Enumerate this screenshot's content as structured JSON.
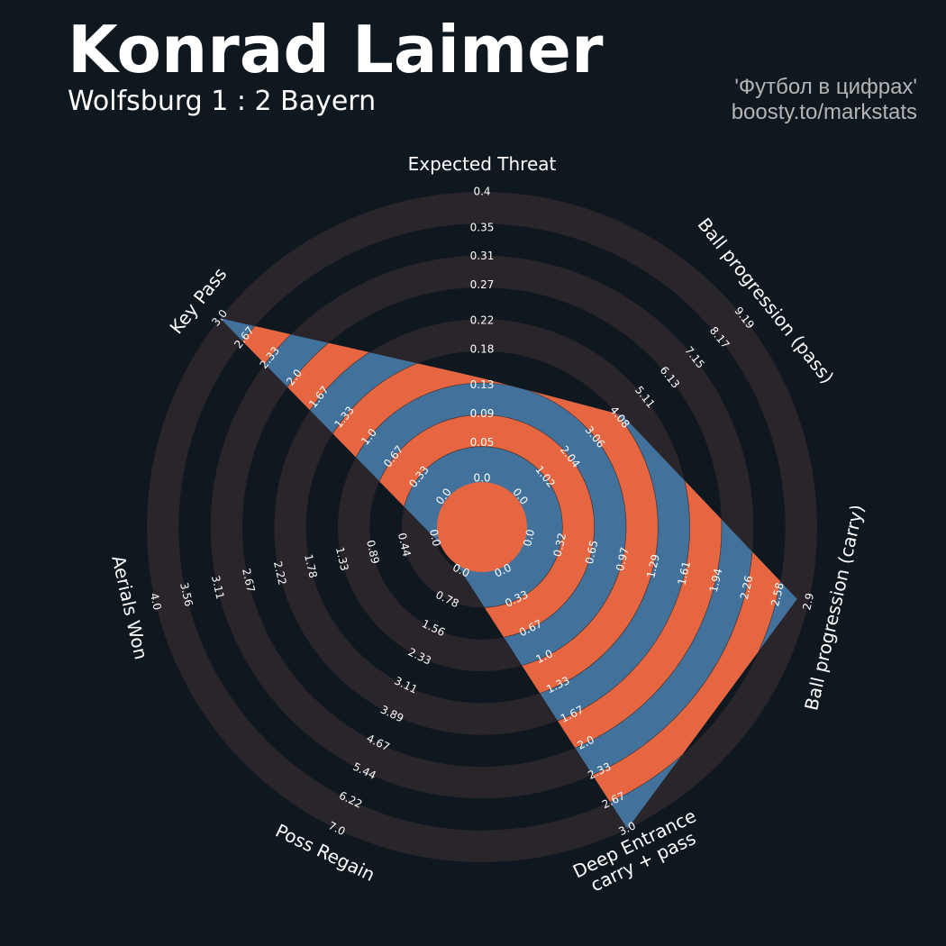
{
  "chart_data": {
    "type": "radar",
    "title": "Konrad Laimer",
    "subtitle": "Wolfsburg 1 : 2 Bayern",
    "credits": [
      "'Футбол в цифрах'",
      "boosty.to/markstats"
    ],
    "params": [
      "Expected Threat",
      "Ball progression (pass)",
      "Ball progression (carry)",
      "Deep Entrance\ncarry + pass",
      "Poss Regain",
      "Aerials Won",
      "Key Pass"
    ],
    "values": [
      0.14,
      4.2,
      2.78,
      3.0,
      0,
      0,
      3.0
    ],
    "ranges": [
      [
        0,
        0.4
      ],
      [
        0,
        9.19
      ],
      [
        0,
        2.9
      ],
      [
        0,
        3.0
      ],
      [
        0,
        7.0
      ],
      [
        0,
        4.0
      ],
      [
        0,
        3.0
      ]
    ],
    "ticks": [
      [
        {
          "value": 0,
          "label": "0.0"
        },
        0.05,
        0.09,
        0.13,
        0.18,
        0.22,
        0.27,
        0.31,
        0.35,
        0.4
      ],
      [
        {
          "value": 0,
          "label": "0.0"
        },
        1.02,
        2.04,
        3.06,
        4.08,
        5.11,
        6.13,
        7.15,
        8.17,
        9.19
      ],
      [
        {
          "value": 0,
          "label": "0.0"
        },
        0.32,
        0.65,
        0.97,
        1.29,
        1.61,
        1.94,
        2.26,
        2.58,
        2.9
      ],
      [
        {
          "value": 0,
          "label": "0.0"
        },
        0.33,
        0.67,
        {
          "value": 1,
          "label": "1.0"
        },
        1.33,
        1.67,
        {
          "value": 2,
          "label": "2.0"
        },
        2.33,
        2.67,
        {
          "value": 3,
          "label": "3.0"
        }
      ],
      [
        {
          "value": 0,
          "label": "0.0"
        },
        0.78,
        1.56,
        2.33,
        3.11,
        3.89,
        4.67,
        5.44,
        6.22,
        {
          "value": 7,
          "label": "7.0"
        }
      ],
      [
        {
          "value": 0,
          "label": "0.0"
        },
        0.44,
        0.89,
        1.33,
        1.78,
        2.22,
        2.67,
        3.11,
        3.56,
        {
          "value": 4,
          "label": "4.0"
        }
      ],
      [
        {
          "value": 0,
          "label": "0.0"
        },
        0.33,
        0.67,
        {
          "value": 1,
          "label": "1.0"
        },
        1.33,
        1.67,
        {
          "value": 2,
          "label": "2.0"
        },
        2.33,
        2.67,
        {
          "value": 3,
          "label": "3.0"
        }
      ]
    ],
    "colors": {
      "background": "#0f171f",
      "ring": "#29252b",
      "fill": "#42729c",
      "ring_fill": "#e66641"
    }
  }
}
